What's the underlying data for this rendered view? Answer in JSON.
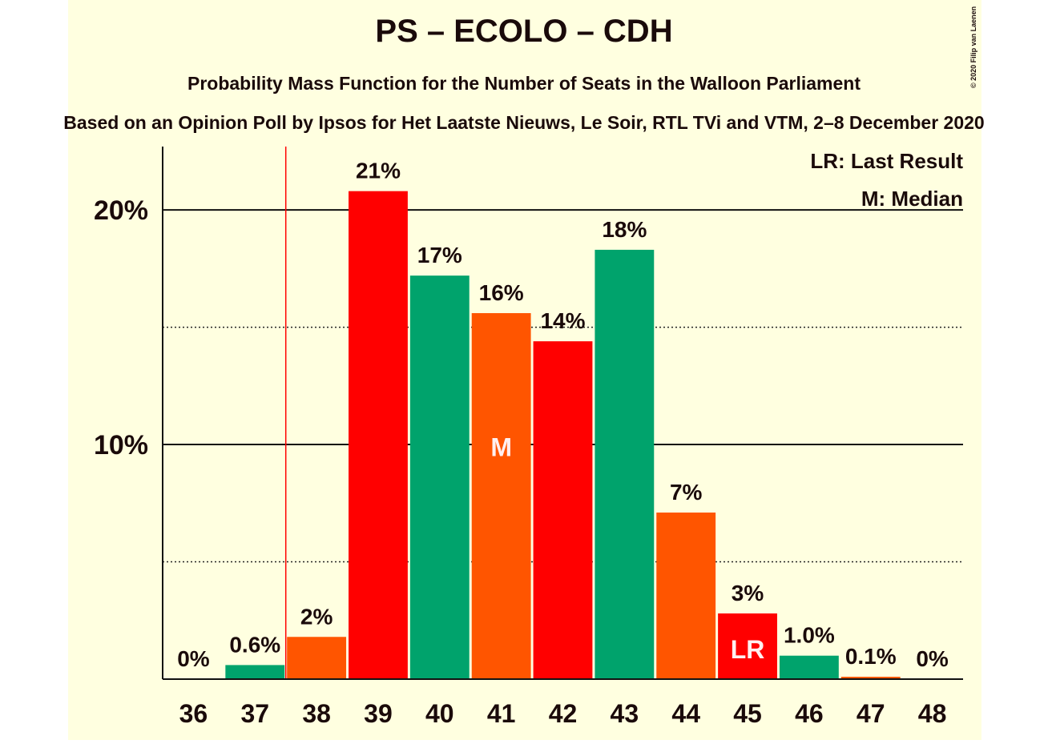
{
  "chart_data": {
    "type": "bar",
    "title": "PS – ECOLO – CDH",
    "subtitle": "Probability Mass Function for the Number of Seats in the Walloon Parliament",
    "source": "Based on an Opinion Poll by Ipsos for Het Laatste Nieuws, Le Soir, RTL TVi and VTM, 2–8 December 2020",
    "copyright": "© 2020 Filip van Laenen",
    "categories": [
      "36",
      "37",
      "38",
      "39",
      "40",
      "41",
      "42",
      "43",
      "44",
      "45",
      "46",
      "47",
      "48"
    ],
    "values": [
      0,
      0.6,
      1.8,
      20.8,
      17.2,
      15.6,
      14.4,
      18.3,
      7.1,
      2.8,
      1.0,
      0.1,
      0
    ],
    "value_labels": [
      "0%",
      "0.6%",
      "2%",
      "21%",
      "17%",
      "16%",
      "14%",
      "18%",
      "7%",
      "3%",
      "1.0%",
      "0.1%",
      "0%"
    ],
    "colors": [
      "#ff0000",
      "#00a36c",
      "#ff5500",
      "#ff0000",
      "#00a36c",
      "#ff5500",
      "#ff0000",
      "#00a36c",
      "#ff5500",
      "#ff0000",
      "#00a36c",
      "#ff5500",
      "#ff0000"
    ],
    "ylim": [
      0,
      22.7
    ],
    "yticks": [
      {
        "value": 10,
        "label": "10%"
      },
      {
        "value": 20,
        "label": "20%"
      }
    ],
    "minor_yticks": [
      5,
      15
    ],
    "grid": true,
    "vline": {
      "after": "37",
      "color": "#ff0000"
    },
    "annotations": [
      {
        "text": "M",
        "category": "41"
      },
      {
        "text": "LR",
        "category": "45"
      }
    ],
    "legend": [
      "LR: Last Result",
      "M: Median"
    ]
  }
}
